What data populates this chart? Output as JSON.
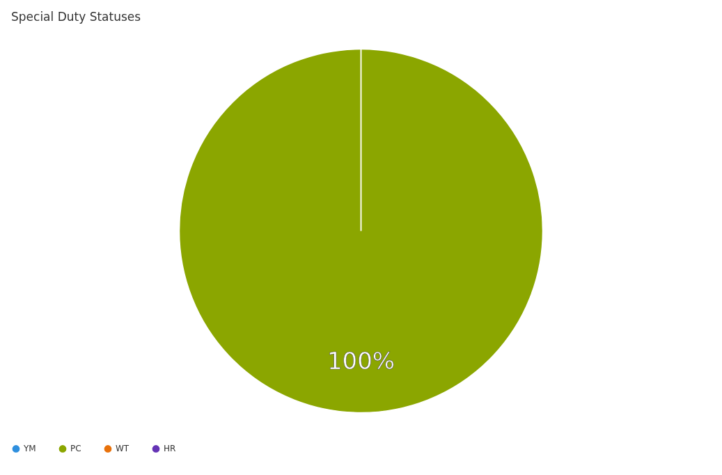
{
  "chart_data": {
    "type": "pie",
    "title": "Special Duty Statuses",
    "categories": [
      "YM",
      "PC",
      "WT",
      "HR"
    ],
    "values": [
      0,
      100,
      0,
      0
    ],
    "colors": [
      "#2e8fde",
      "#8ba600",
      "#e8710a",
      "#6433b5"
    ],
    "value_labels": [
      null,
      "100%",
      null,
      null
    ],
    "legend": "bottom"
  }
}
